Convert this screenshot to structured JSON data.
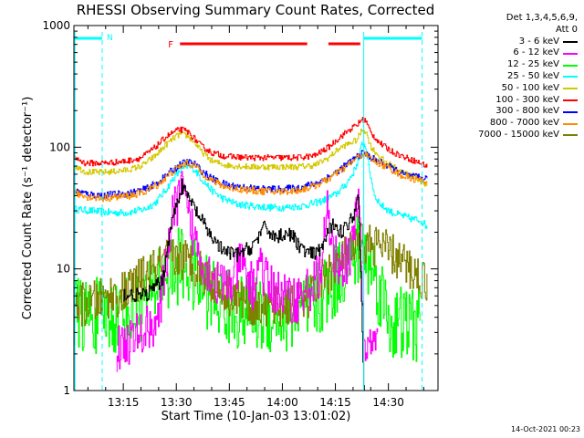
{
  "chart_data": {
    "type": "line",
    "title": "RHESSI Observing Summary Count Rates, Corrected",
    "xlabel": "Start Time (10-Jan-03 13:01:02)",
    "ylabel": "Corrected Count Rate (s⁻¹ detector⁻¹)",
    "y_scale": "log",
    "ylim": [
      1,
      1000
    ],
    "x_unit": "minutes since 13:01:02",
    "xlim": [
      0,
      103
    ],
    "x_ticks": [
      {
        "x": 13.97,
        "label": "13:15"
      },
      {
        "x": 28.97,
        "label": "13:30"
      },
      {
        "x": 43.97,
        "label": "13:45"
      },
      {
        "x": 58.97,
        "label": "14:00"
      },
      {
        "x": 73.97,
        "label": "14:15"
      },
      {
        "x": 88.97,
        "label": "14:30"
      }
    ],
    "y_ticks": [
      {
        "y": 1,
        "label": "1"
      },
      {
        "y": 10,
        "label": "10"
      },
      {
        "y": 100,
        "label": "100"
      },
      {
        "y": 1000,
        "label": "1000"
      }
    ],
    "legend_header": [
      "Det 1,3,4,5,6,9,",
      "Att 0"
    ],
    "legend_position": "right",
    "series": [
      {
        "name": "3 - 6 keV",
        "color": "#000000",
        "points": [
          [
            14,
            6.2
          ],
          [
            20,
            6
          ],
          [
            25,
            8
          ],
          [
            27,
            20
          ],
          [
            29,
            35
          ],
          [
            30.5,
            48
          ],
          [
            32,
            40
          ],
          [
            35,
            28
          ],
          [
            38,
            20
          ],
          [
            42,
            14
          ],
          [
            46,
            13
          ],
          [
            50,
            15
          ],
          [
            54,
            22
          ],
          [
            57,
            18
          ],
          [
            60,
            20
          ],
          [
            62,
            18
          ],
          [
            65,
            14
          ],
          [
            68,
            13
          ],
          [
            70,
            15
          ],
          [
            72,
            20
          ],
          [
            74,
            25
          ],
          [
            75,
            20
          ],
          [
            77,
            22
          ],
          [
            79,
            28
          ],
          [
            80.5,
            40
          ],
          [
            82,
            1
          ],
          [
            83,
            0.5
          ]
        ]
      },
      {
        "name": "6 - 12 keV",
        "color": "#ff00ff",
        "points": [
          [
            12,
            2.2
          ],
          [
            14,
            2.4
          ],
          [
            18,
            2.8
          ],
          [
            22,
            3.5
          ],
          [
            24,
            4
          ],
          [
            25.5,
            8
          ],
          [
            27,
            20
          ],
          [
            29,
            35
          ],
          [
            30.5,
            45
          ],
          [
            32,
            28
          ],
          [
            34,
            18
          ],
          [
            37,
            11
          ],
          [
            40,
            8
          ],
          [
            43,
            7
          ],
          [
            45,
            8
          ],
          [
            47,
            12
          ],
          [
            49,
            8
          ],
          [
            51,
            7
          ],
          [
            52.5,
            13
          ],
          [
            54,
            8
          ],
          [
            57,
            6.5
          ],
          [
            60,
            6
          ],
          [
            62,
            5.5
          ],
          [
            64,
            6
          ],
          [
            67,
            7
          ],
          [
            70,
            10
          ],
          [
            71.5,
            30
          ],
          [
            73,
            14
          ],
          [
            75,
            11
          ],
          [
            78,
            12
          ],
          [
            79,
            17
          ],
          [
            80.5,
            45
          ],
          [
            81,
            18
          ],
          [
            82,
            2.2
          ],
          [
            84,
            2.4
          ],
          [
            86,
            2.2
          ]
        ]
      },
      {
        "name": "12 - 25 keV",
        "color": "#00ff00",
        "points": [
          [
            0,
            4.2
          ],
          [
            6,
            4.1
          ],
          [
            12,
            4.1
          ],
          [
            15,
            4.3
          ],
          [
            18,
            5
          ],
          [
            21,
            6
          ],
          [
            23,
            7
          ],
          [
            24,
            9
          ],
          [
            25,
            8
          ],
          [
            27,
            9
          ],
          [
            30,
            11
          ],
          [
            32,
            10
          ],
          [
            35,
            8
          ],
          [
            38,
            6.5
          ],
          [
            41,
            5.2
          ],
          [
            44,
            4.7
          ],
          [
            47,
            4.4
          ],
          [
            50,
            4.3
          ],
          [
            53,
            4.2
          ],
          [
            56,
            4.1
          ],
          [
            60,
            4.1
          ],
          [
            64,
            4.2
          ],
          [
            67,
            4.8
          ],
          [
            70,
            5.8
          ],
          [
            73,
            7.5
          ],
          [
            76,
            10
          ],
          [
            79,
            12
          ],
          [
            81,
            15
          ],
          [
            83,
            12
          ],
          [
            85,
            9
          ],
          [
            87,
            6
          ],
          [
            89,
            4
          ],
          [
            90,
            3.5
          ],
          [
            98,
            3.5
          ]
        ]
      },
      {
        "name": "25 - 50 keV",
        "color": "#00ffff",
        "points": [
          [
            0,
            31
          ],
          [
            5,
            30
          ],
          [
            10,
            29
          ],
          [
            15,
            29
          ],
          [
            20,
            31
          ],
          [
            23,
            35
          ],
          [
            26,
            45
          ],
          [
            28,
            55
          ],
          [
            30,
            64
          ],
          [
            32,
            70
          ],
          [
            34,
            66
          ],
          [
            36,
            55
          ],
          [
            39,
            44
          ],
          [
            42,
            38
          ],
          [
            46,
            34
          ],
          [
            50,
            33
          ],
          [
            55,
            32
          ],
          [
            60,
            32
          ],
          [
            65,
            33
          ],
          [
            70,
            36
          ],
          [
            74,
            41
          ],
          [
            77,
            50
          ],
          [
            79,
            62
          ],
          [
            80.5,
            80
          ],
          [
            81.5,
            110
          ],
          [
            82.5,
            100
          ],
          [
            83.5,
            65
          ],
          [
            85,
            40
          ],
          [
            87,
            33
          ],
          [
            90,
            29
          ],
          [
            95,
            26
          ],
          [
            98,
            25
          ],
          [
            100,
            22
          ]
        ]
      },
      {
        "name": "50 - 100 keV",
        "color": "#d4c800",
        "points": [
          [
            0,
            71
          ],
          [
            3,
            63
          ],
          [
            7,
            62
          ],
          [
            11,
            63
          ],
          [
            15,
            65
          ],
          [
            19,
            70
          ],
          [
            23,
            85
          ],
          [
            26,
            105
          ],
          [
            28,
            118
          ],
          [
            30,
            128
          ],
          [
            32,
            124
          ],
          [
            34,
            110
          ],
          [
            36,
            92
          ],
          [
            39,
            77
          ],
          [
            43,
            71
          ],
          [
            50,
            69
          ],
          [
            57,
            69
          ],
          [
            63,
            69
          ],
          [
            68,
            71
          ],
          [
            72,
            82
          ],
          [
            75,
            98
          ],
          [
            78,
            108
          ],
          [
            80,
            115
          ],
          [
            81.5,
            140
          ],
          [
            82.5,
            135
          ],
          [
            84,
            100
          ],
          [
            87,
            80
          ],
          [
            90,
            70
          ],
          [
            93,
            62
          ],
          [
            96,
            58
          ],
          [
            100,
            48
          ]
        ]
      },
      {
        "name": "100 - 300 keV",
        "color": "#ff0000",
        "points": [
          [
            0,
            83
          ],
          [
            3,
            74
          ],
          [
            7,
            74
          ],
          [
            11,
            75
          ],
          [
            15,
            77
          ],
          [
            19,
            82
          ],
          [
            23,
            100
          ],
          [
            26,
            122
          ],
          [
            28,
            132
          ],
          [
            30,
            140
          ],
          [
            32,
            135
          ],
          [
            34,
            118
          ],
          [
            36,
            102
          ],
          [
            39,
            90
          ],
          [
            43,
            84
          ],
          [
            50,
            82
          ],
          [
            57,
            82
          ],
          [
            63,
            82
          ],
          [
            68,
            85
          ],
          [
            72,
            100
          ],
          [
            75,
            120
          ],
          [
            78,
            140
          ],
          [
            80,
            152
          ],
          [
            81.5,
            170
          ],
          [
            82.5,
            165
          ],
          [
            84,
            130
          ],
          [
            87,
            105
          ],
          [
            90,
            92
          ],
          [
            93,
            84
          ],
          [
            96,
            78
          ],
          [
            100,
            70
          ]
        ]
      },
      {
        "name": "300 - 800 keV",
        "color": "#0000ff",
        "points": [
          [
            0,
            44
          ],
          [
            4,
            41
          ],
          [
            8,
            40
          ],
          [
            12,
            41
          ],
          [
            16,
            42
          ],
          [
            20,
            45
          ],
          [
            24,
            52
          ],
          [
            27,
            62
          ],
          [
            30,
            72
          ],
          [
            32,
            76
          ],
          [
            34,
            73
          ],
          [
            36,
            64
          ],
          [
            39,
            55
          ],
          [
            43,
            49
          ],
          [
            50,
            46
          ],
          [
            57,
            45
          ],
          [
            63,
            46
          ],
          [
            68,
            50
          ],
          [
            72,
            57
          ],
          [
            75,
            65
          ],
          [
            78,
            75
          ],
          [
            80,
            84
          ],
          [
            82,
            90
          ],
          [
            84,
            82
          ],
          [
            87,
            74
          ],
          [
            90,
            67
          ],
          [
            93,
            60
          ],
          [
            96,
            57
          ],
          [
            100,
            55
          ]
        ]
      },
      {
        "name": "800 - 7000 keV",
        "color": "#ff8c00",
        "points": [
          [
            0,
            42
          ],
          [
            4,
            39
          ],
          [
            8,
            38
          ],
          [
            12,
            39
          ],
          [
            16,
            40
          ],
          [
            20,
            43
          ],
          [
            24,
            50
          ],
          [
            27,
            60
          ],
          [
            30,
            70
          ],
          [
            32,
            74
          ],
          [
            34,
            71
          ],
          [
            36,
            62
          ],
          [
            39,
            53
          ],
          [
            43,
            47
          ],
          [
            50,
            44
          ],
          [
            57,
            43
          ],
          [
            63,
            44
          ],
          [
            68,
            48
          ],
          [
            72,
            55
          ],
          [
            75,
            63
          ],
          [
            78,
            73
          ],
          [
            80,
            82
          ],
          [
            82,
            88
          ],
          [
            84,
            80
          ],
          [
            87,
            72
          ],
          [
            90,
            65
          ],
          [
            93,
            58
          ],
          [
            96,
            55
          ],
          [
            100,
            52
          ]
        ]
      },
      {
        "name": "7000 - 15000 keV",
        "color": "#808000",
        "points": [
          [
            0,
            5
          ],
          [
            5,
            5.2
          ],
          [
            10,
            6
          ],
          [
            13,
            6
          ],
          [
            16,
            7
          ],
          [
            19,
            8.3
          ],
          [
            22,
            9.5
          ],
          [
            25,
            11
          ],
          [
            28,
            12.5
          ],
          [
            31,
            12
          ],
          [
            34,
            11
          ],
          [
            37,
            9
          ],
          [
            40,
            7.5
          ],
          [
            43,
            6.5
          ],
          [
            47,
            5.5
          ],
          [
            52,
            5
          ],
          [
            56,
            4.8
          ],
          [
            60,
            5
          ],
          [
            64,
            5.2
          ],
          [
            67,
            6
          ],
          [
            70,
            8
          ],
          [
            73,
            10
          ],
          [
            76,
            12
          ],
          [
            79,
            14
          ],
          [
            81,
            16
          ],
          [
            84,
            16
          ],
          [
            87,
            15
          ],
          [
            90,
            13
          ],
          [
            93,
            11
          ],
          [
            96,
            9.5
          ],
          [
            100,
            7.5
          ]
        ]
      }
    ],
    "annotations": [
      {
        "label": "N",
        "color": "#00ffff"
      },
      {
        "label": "F",
        "color": "#ff0000"
      }
    ]
  },
  "footer": {
    "timestamp": "14-Oct-2021 00:23"
  },
  "colors": {
    "axes": "#000000",
    "night_marker": "#00ffff",
    "flare_marker": "#ff0000"
  }
}
